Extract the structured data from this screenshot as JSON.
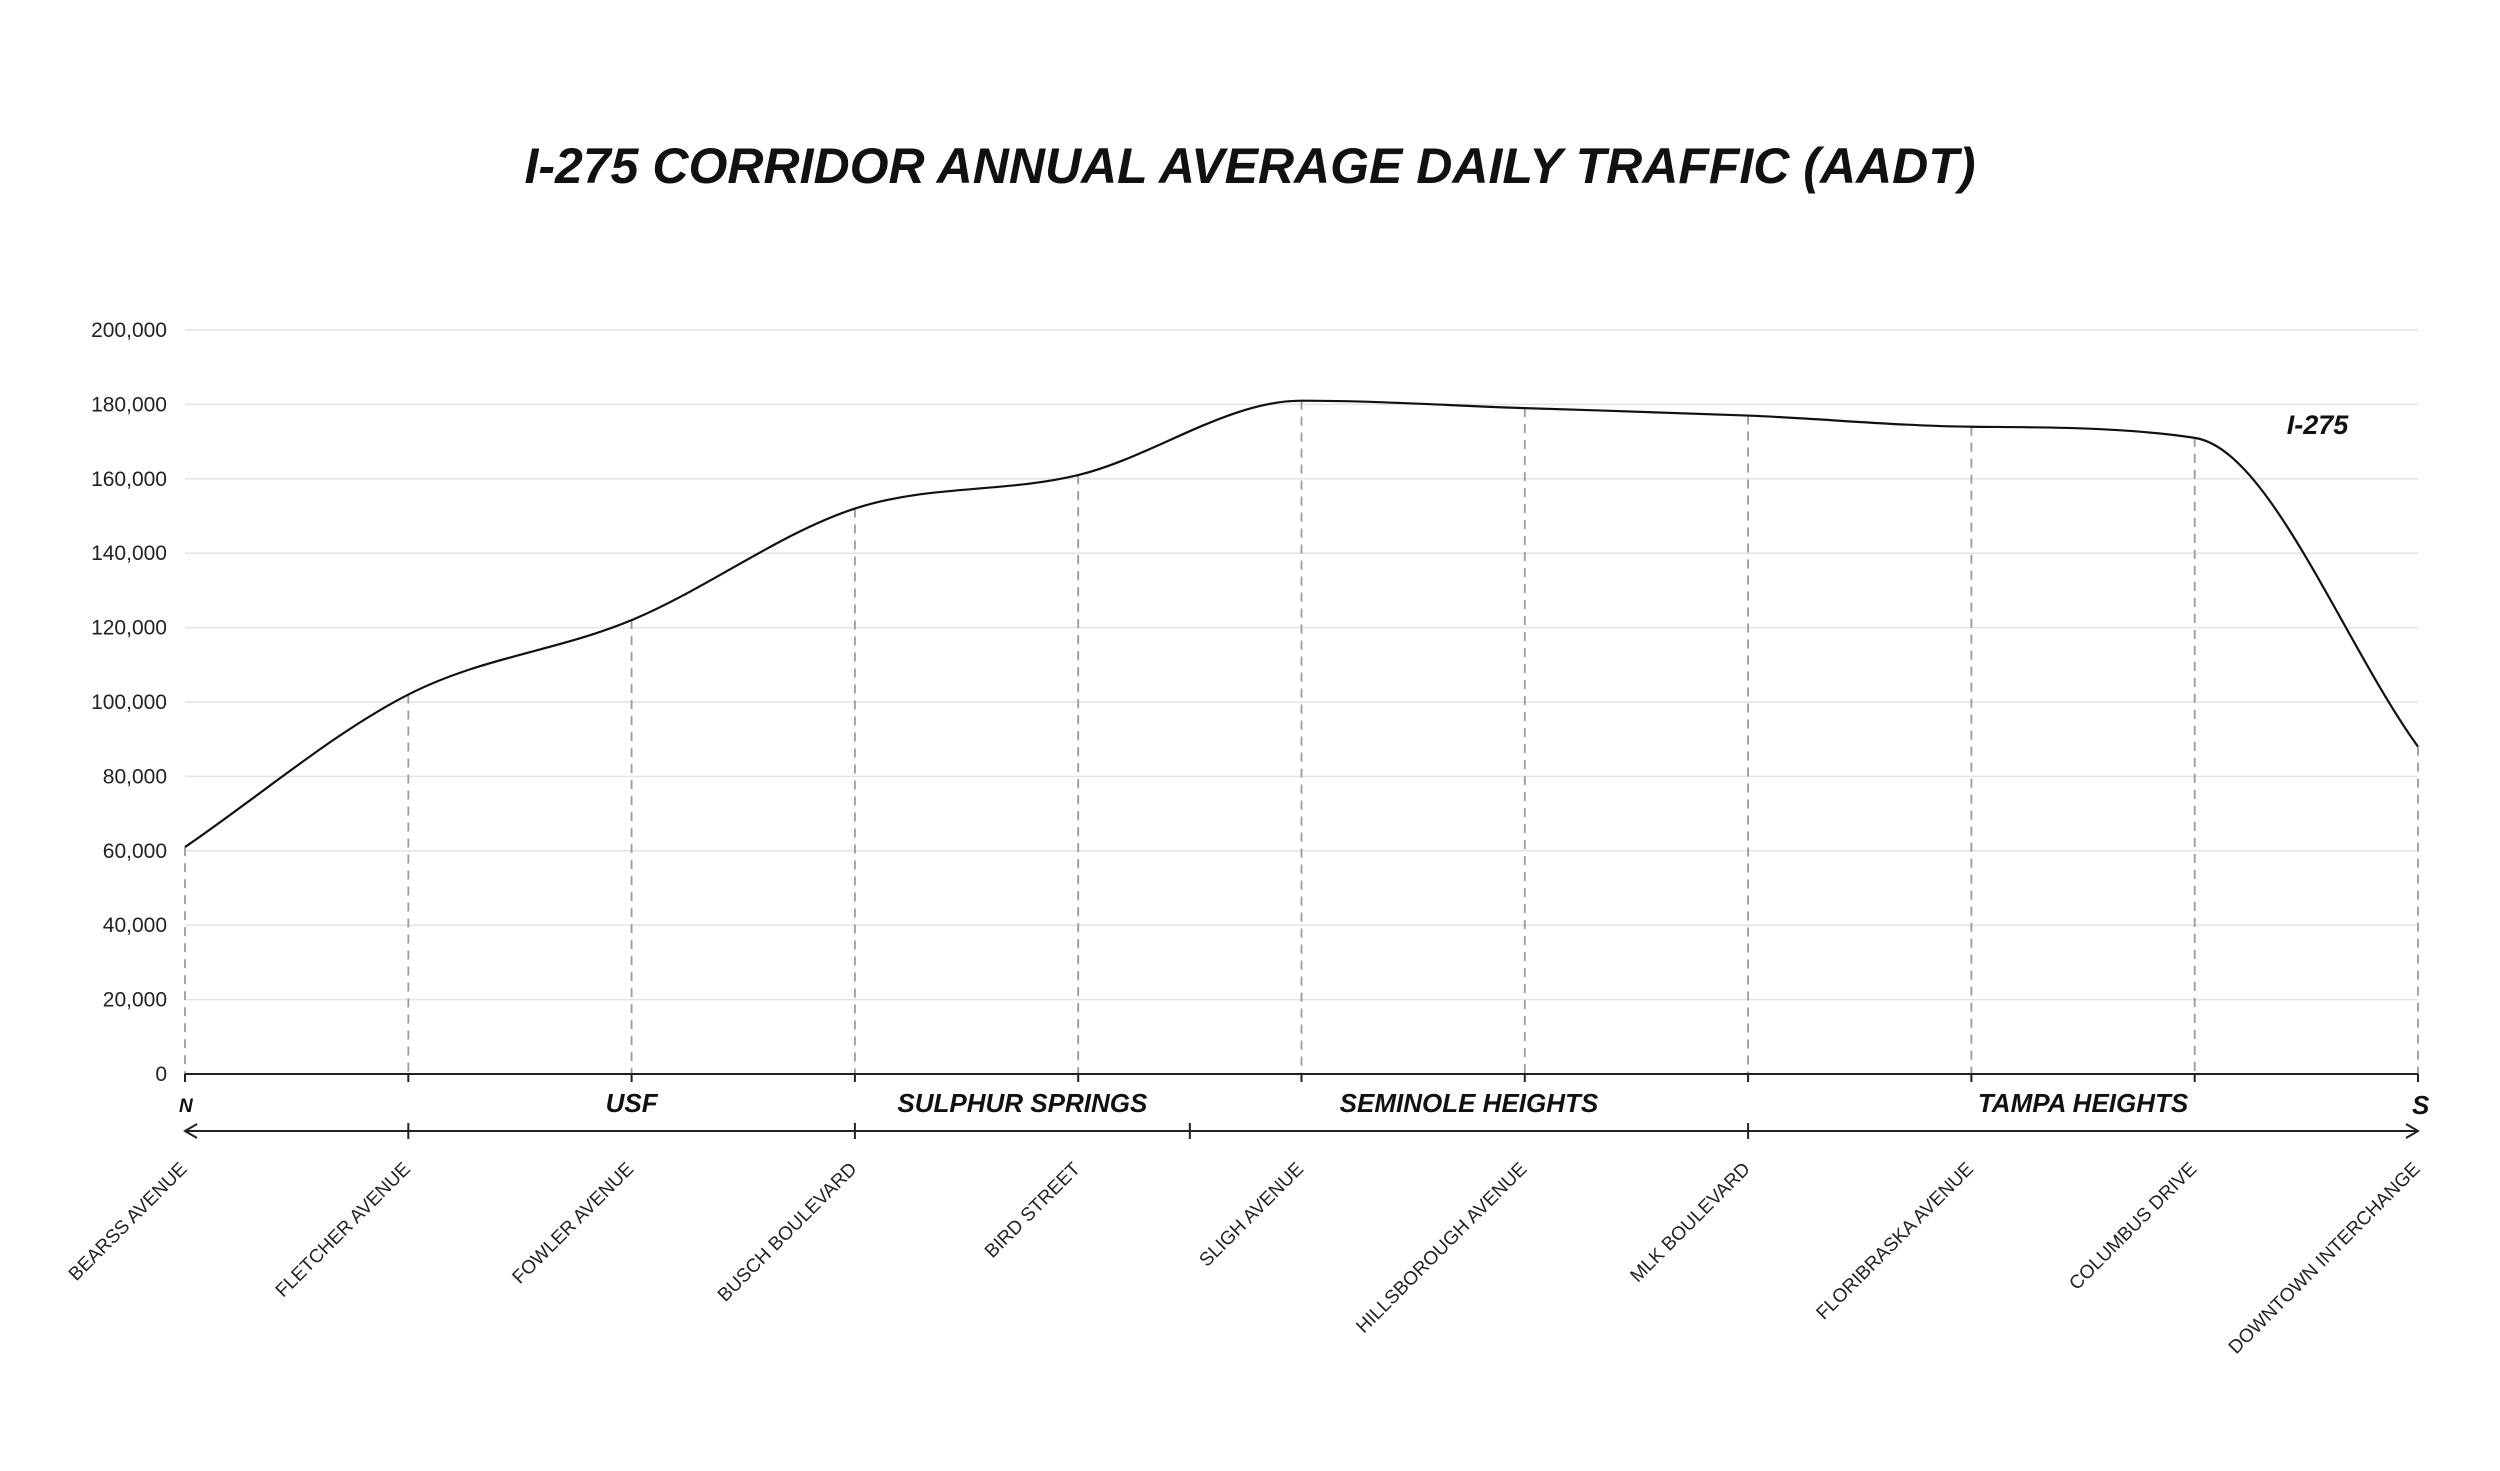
{
  "chart_data": {
    "type": "line",
    "title": "I-275 CORRIDOR ANNUAL AVERAGE DAILY TRAFFIC (AADT)",
    "xlabel": "",
    "ylabel": "",
    "ylim": [
      0,
      200000
    ],
    "yticks": [
      "0",
      "20,000",
      "40,000",
      "60,000",
      "80,000",
      "100,000",
      "120,000",
      "140,000",
      "160,000",
      "180,000",
      "200,000"
    ],
    "grid": true,
    "categories": [
      "BEARSS AVENUE",
      "FLETCHER AVENUE",
      "FOWLER AVENUE",
      "BUSCH BOULEVARD",
      "BIRD STREET",
      "SLIGH AVENUE",
      "HILLSBOROUGH AVENUE",
      "MLK BOULEVARD",
      "FLORIBRASKA AVENUE",
      "COLUMBUS DRIVE",
      "DOWNTOWN INTERCHANGE"
    ],
    "series": [
      {
        "name": "I-275",
        "values": [
          61000,
          102000,
          122000,
          152000,
          161000,
          181000,
          179000,
          177000,
          174000,
          171000,
          88000
        ]
      }
    ],
    "regions": [
      {
        "label": "USF",
        "anchor": 2
      },
      {
        "label": "SULPHUR SPRINGS",
        "anchor": 3.75
      },
      {
        "label": "SEMINOLE HEIGHTS",
        "anchor": 5.75
      },
      {
        "label": "TAMPA HEIGHTS",
        "anchor": 8.5
      }
    ],
    "dividers": [
      1,
      3,
      4.5,
      7
    ],
    "direction": {
      "north": "N",
      "south": "S"
    },
    "colors": {
      "line": "#111111",
      "grid": "#e3e3e3",
      "drop": "#9a9a9a",
      "axis": "#222222"
    }
  }
}
